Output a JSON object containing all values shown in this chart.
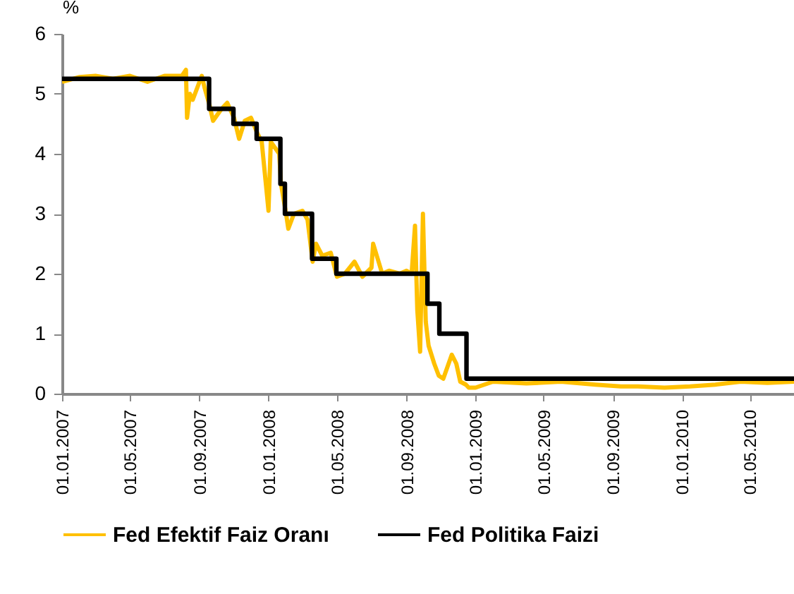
{
  "chart_data": {
    "type": "line",
    "ylabel": "%",
    "xlim": [
      "2007-01-01",
      "2010-07-18"
    ],
    "ylim": [
      0,
      6
    ],
    "yticks": [
      0,
      1,
      2,
      3,
      4,
      5,
      6
    ],
    "xticks": [
      {
        "value": "2007-01-01",
        "label": "01.01.2007"
      },
      {
        "value": "2007-05-01",
        "label": "01.05.2007"
      },
      {
        "value": "2007-09-01",
        "label": "01.09.2007"
      },
      {
        "value": "2008-01-01",
        "label": "01.01.2008"
      },
      {
        "value": "2008-05-01",
        "label": "01.05.2008"
      },
      {
        "value": "2008-09-01",
        "label": "01.09.2008"
      },
      {
        "value": "2009-01-01",
        "label": "01.01.2009"
      },
      {
        "value": "2009-05-01",
        "label": "01.05.2009"
      },
      {
        "value": "2009-09-01",
        "label": "01.09.2009"
      },
      {
        "value": "2010-01-01",
        "label": "01.01.2010"
      },
      {
        "value": "2010-05-01",
        "label": "01.05.2010"
      }
    ],
    "grid": false,
    "legend": "bottom",
    "marker": "none",
    "series": [
      {
        "name": "Fed Efektif Faiz Oranı",
        "color": "#ffc000",
        "type": "line",
        "x": [
          "2007-01-01",
          "2007-02-01",
          "2007-03-01",
          "2007-04-01",
          "2007-05-01",
          "2007-06-01",
          "2007-07-01",
          "2007-08-01",
          "2007-08-08",
          "2007-08-10",
          "2007-08-15",
          "2007-08-20",
          "2007-08-28",
          "2007-09-05",
          "2007-09-10",
          "2007-09-19",
          "2007-09-25",
          "2007-10-10",
          "2007-10-20",
          "2007-11-01",
          "2007-11-10",
          "2007-11-20",
          "2007-12-01",
          "2007-12-12",
          "2007-12-20",
          "2008-01-01",
          "2008-01-05",
          "2008-01-20",
          "2008-01-23",
          "2008-02-01",
          "2008-02-05",
          "2008-02-15",
          "2008-03-01",
          "2008-03-10",
          "2008-03-19",
          "2008-03-25",
          "2008-04-05",
          "2008-04-20",
          "2008-05-01",
          "2008-05-15",
          "2008-06-01",
          "2008-06-15",
          "2008-07-01",
          "2008-07-04",
          "2008-07-20",
          "2008-08-01",
          "2008-08-20",
          "2008-09-01",
          "2008-09-10",
          "2008-09-16",
          "2008-09-20",
          "2008-09-25",
          "2008-09-30",
          "2008-10-05",
          "2008-10-10",
          "2008-10-20",
          "2008-10-28",
          "2008-11-05",
          "2008-11-20",
          "2008-11-28",
          "2008-12-05",
          "2008-12-15",
          "2008-12-20",
          "2009-01-01",
          "2009-02-01",
          "2009-04-01",
          "2009-06-01",
          "2009-08-01",
          "2009-09-15",
          "2009-10-15",
          "2009-12-01",
          "2010-01-15",
          "2010-03-01",
          "2010-04-15",
          "2010-06-01",
          "2010-07-18"
        ],
        "values": [
          5.2,
          5.28,
          5.3,
          5.25,
          5.3,
          5.2,
          5.3,
          5.3,
          5.4,
          4.6,
          5.0,
          4.9,
          5.1,
          5.3,
          5.1,
          4.8,
          4.55,
          4.75,
          4.85,
          4.6,
          4.25,
          4.55,
          4.6,
          4.35,
          4.2,
          3.05,
          4.2,
          4.0,
          3.5,
          3.0,
          2.75,
          3.0,
          3.05,
          2.9,
          2.2,
          2.5,
          2.3,
          2.35,
          1.95,
          2.0,
          2.2,
          1.95,
          2.1,
          2.5,
          2.0,
          2.05,
          2.0,
          2.05,
          2.0,
          2.8,
          1.4,
          0.7,
          3.0,
          1.2,
          0.8,
          0.5,
          0.3,
          0.25,
          0.65,
          0.5,
          0.2,
          0.15,
          0.1,
          0.1,
          0.2,
          0.17,
          0.2,
          0.15,
          0.12,
          0.12,
          0.1,
          0.12,
          0.15,
          0.2,
          0.18,
          0.2
        ]
      },
      {
        "name": "Fed Politika Faizi",
        "color": "#000000",
        "type": "step",
        "x": [
          "2007-01-01",
          "2007-09-18",
          "2007-10-31",
          "2007-12-11",
          "2008-01-22",
          "2008-01-30",
          "2008-03-18",
          "2008-04-30",
          "2008-10-08",
          "2008-10-29",
          "2008-12-16",
          "2010-07-18"
        ],
        "values": [
          5.25,
          4.75,
          4.5,
          4.25,
          3.5,
          3.0,
          2.25,
          2.0,
          1.5,
          1.0,
          0.25,
          0.25
        ]
      }
    ]
  }
}
